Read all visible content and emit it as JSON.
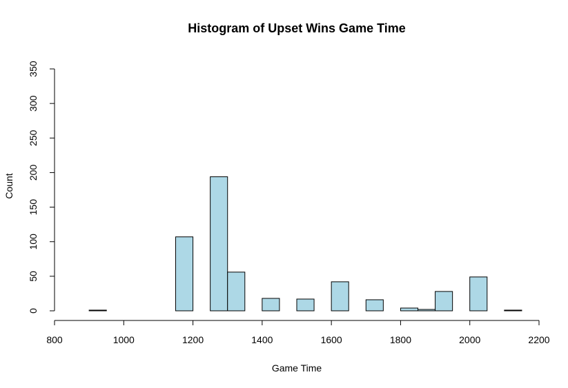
{
  "chart_data": {
    "type": "bar",
    "title": "Histogram of Upset Wins Game Time",
    "xlabel": "Game Time",
    "ylabel": "Count",
    "xlim": [
      800,
      2200
    ],
    "ylim": [
      0,
      350
    ],
    "x_ticks": [
      800,
      1000,
      1200,
      1400,
      1600,
      1800,
      2000,
      2200
    ],
    "y_ticks": [
      0,
      50,
      100,
      150,
      200,
      250,
      300,
      350
    ],
    "bar_color": "#add8e6",
    "bins": [
      {
        "start": 900,
        "end": 950,
        "count": 1
      },
      {
        "start": 1150,
        "end": 1200,
        "count": 107
      },
      {
        "start": 1250,
        "end": 1300,
        "count": 194
      },
      {
        "start": 1300,
        "end": 1350,
        "count": 56
      },
      {
        "start": 1400,
        "end": 1450,
        "count": 18
      },
      {
        "start": 1500,
        "end": 1550,
        "count": 17
      },
      {
        "start": 1600,
        "end": 1650,
        "count": 42
      },
      {
        "start": 1700,
        "end": 1750,
        "count": 16
      },
      {
        "start": 1800,
        "end": 1850,
        "count": 4
      },
      {
        "start": 1850,
        "end": 1900,
        "count": 2
      },
      {
        "start": 1900,
        "end": 1950,
        "count": 28
      },
      {
        "start": 2000,
        "end": 2050,
        "count": 49
      },
      {
        "start": 2100,
        "end": 2150,
        "count": 1
      }
    ]
  }
}
